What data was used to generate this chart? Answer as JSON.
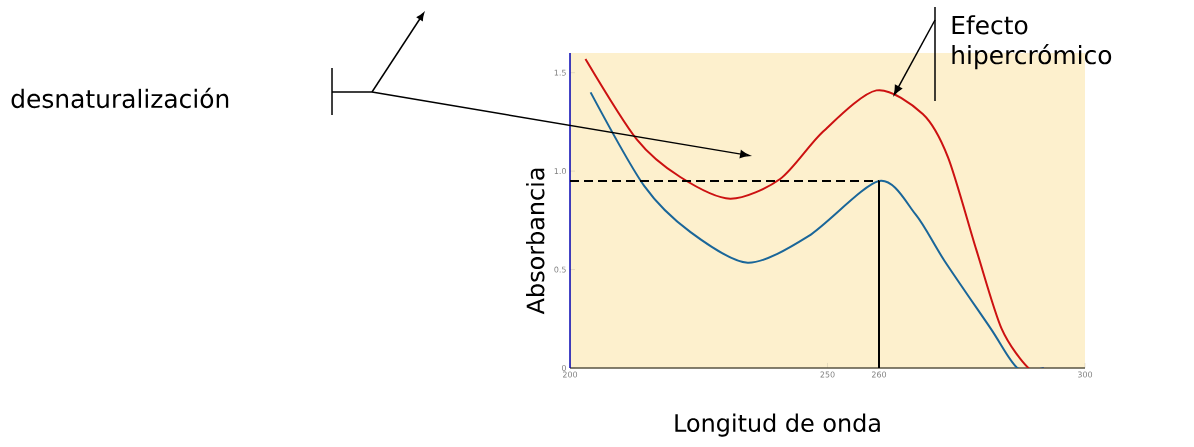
{
  "chart_data": {
    "type": "line",
    "xlabel": "Longitud de onda",
    "ylabel": "Absorbancia",
    "annotations": [
      "desnaturalización",
      "Efecto hipercrómico"
    ],
    "xlim": [
      200,
      300
    ],
    "ylim": [
      0,
      1.6
    ],
    "xticks": [
      200,
      250,
      260,
      300
    ],
    "yticks": [
      0,
      0.5,
      {
        "value": 1,
        "label": "1.0"
      },
      1.5
    ],
    "series": [
      {
        "color": "#cc1111",
        "x": [
          203,
          213,
          221.4,
          231.1,
          240.8,
          249.1,
          259.5,
          268.5,
          273.4,
          278.9,
          283.8,
          289,
          292
        ],
        "values": [
          1.57,
          1.16,
          0.97,
          0.86,
          0.96,
          1.2,
          1.41,
          1.29,
          1.07,
          0.6,
          0.2,
          0,
          0
        ]
      },
      {
        "color": "#1a6699",
        "x": [
          204,
          214.4,
          223.4,
          234.5,
          246.3,
          260,
          267.1,
          272.7,
          281.7,
          286.9,
          292
        ],
        "values": [
          1.4,
          0.925,
          0.69,
          0.535,
          0.67,
          0.95,
          0.78,
          0.545,
          0.2,
          0,
          0
        ]
      }
    ],
    "ref_lines": [
      {
        "axis": "y",
        "value": 0.95,
        "line_style": "dashed"
      },
      {
        "axis": "x",
        "value": 260,
        "line_style": "solid"
      }
    ],
    "grid": false,
    "marker": "none",
    "line_style": "solid"
  }
}
